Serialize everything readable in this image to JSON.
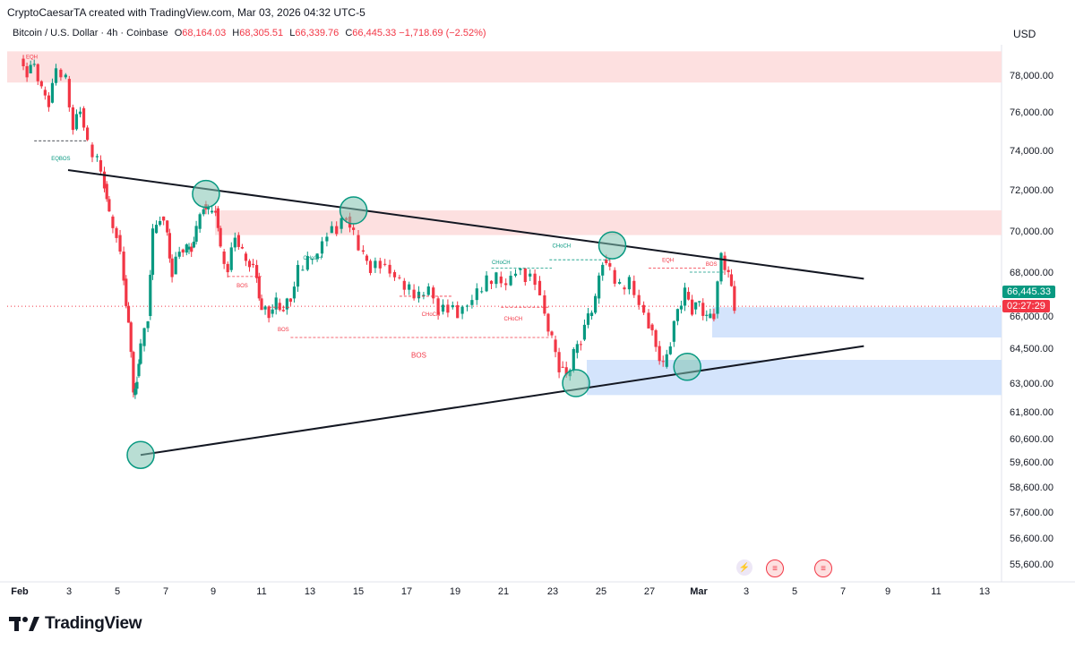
{
  "header": {
    "created_line": "CryptoCaesarTA created with TradingView.com, Mar 03, 2026 04:32 UTC-5",
    "symbol": "Bitcoin / U.S. Dollar · 4h · Coinbase",
    "o_label": "O",
    "o_value": "68,164.03",
    "h_label": "H",
    "h_value": "68,305.51",
    "l_label": "L",
    "l_value": "66,339.76",
    "c_label": "C",
    "c_value": "66,445.33",
    "change": "−1,718.69 (−2.52%)",
    "currency": "USD"
  },
  "price_tags": {
    "last_price": "66,445.33",
    "countdown": "02:27:29"
  },
  "footer": {
    "brand": "TradingView"
  },
  "colors": {
    "up": "#089981",
    "down": "#f23645",
    "supply": "#fde0e0",
    "demand": "#d4e4fc",
    "line": "#131722",
    "circle_fill": "#7fc2b0",
    "circle_stroke": "#089981"
  },
  "chart_data": {
    "type": "candlestick",
    "title": "Bitcoin / U.S. Dollar · 4h · Coinbase",
    "y_axis_ticks": [
      "78,000.00",
      "76,000.00",
      "74,000.00",
      "72,000.00",
      "70,000.00",
      "68,000.00",
      "66,000.00",
      "64,500.00",
      "63,000.00",
      "61,800.00",
      "60,600.00",
      "59,600.00",
      "58,600.00",
      "57,600.00",
      "56,600.00",
      "55,600.00"
    ],
    "x_axis_ticks": [
      "Feb",
      "3",
      "5",
      "7",
      "9",
      "11",
      "13",
      "15",
      "17",
      "19",
      "21",
      "23",
      "25",
      "27",
      "Mar",
      "3",
      "5",
      "7",
      "9",
      "11",
      "13"
    ],
    "close_price_path": [
      [
        1,
        78.9
      ],
      [
        1.3,
        78.1
      ],
      [
        1.6,
        78.6
      ],
      [
        1.9,
        77.2
      ],
      [
        2.2,
        76.5
      ],
      [
        2.5,
        78.3
      ],
      [
        2.9,
        77.8
      ],
      [
        3.2,
        75.1
      ],
      [
        3.5,
        76.2
      ],
      [
        3.8,
        74.3
      ],
      [
        4.2,
        73.5
      ],
      [
        4.5,
        72.3
      ],
      [
        4.7,
        70.7
      ],
      [
        5,
        69.8
      ],
      [
        5.3,
        67.7
      ],
      [
        5.5,
        65.7
      ],
      [
        5.7,
        62.5
      ],
      [
        5.85,
        63.3
      ],
      [
        6.0,
        64.6
      ],
      [
        6.3,
        66.0
      ],
      [
        6.5,
        69.9
      ],
      [
        6.8,
        70.7
      ],
      [
        7.1,
        69.9
      ],
      [
        7.3,
        67.9
      ],
      [
        7.6,
        69.1
      ],
      [
        7.9,
        69.1
      ],
      [
        8.1,
        69.2
      ],
      [
        8.3,
        70.1
      ],
      [
        8.6,
        71.3
      ],
      [
        8.8,
        70.9
      ],
      [
        9.1,
        71.1
      ],
      [
        9.3,
        69.0
      ],
      [
        9.6,
        68.1
      ],
      [
        9.9,
        69.8
      ],
      [
        10.2,
        68.9
      ],
      [
        10.5,
        68.4
      ],
      [
        10.8,
        67.8
      ],
      [
        11.0,
        66.3
      ],
      [
        11.3,
        66.1
      ],
      [
        11.6,
        66.6
      ],
      [
        11.9,
        66.3
      ],
      [
        12.2,
        66.8
      ],
      [
        12.5,
        68.1
      ],
      [
        12.9,
        68.6
      ],
      [
        13.3,
        68.9
      ],
      [
        13.7,
        69.9
      ],
      [
        14.1,
        70.1
      ],
      [
        14.5,
        70.7
      ],
      [
        14.8,
        69.8
      ],
      [
        15.2,
        68.8
      ],
      [
        15.5,
        68.2
      ],
      [
        15.9,
        68.4
      ],
      [
        16.3,
        68.0
      ],
      [
        16.7,
        67.6
      ],
      [
        17.1,
        67.2
      ],
      [
        17.5,
        66.9
      ],
      [
        17.9,
        67.3
      ],
      [
        18.3,
        66.2
      ],
      [
        18.7,
        66.4
      ],
      [
        19.1,
        66.1
      ],
      [
        19.5,
        66.5
      ],
      [
        19.9,
        67.1
      ],
      [
        20.3,
        67.6
      ],
      [
        20.7,
        67.8
      ],
      [
        21.1,
        67.4
      ],
      [
        21.5,
        68.1
      ],
      [
        21.9,
        67.8
      ],
      [
        22.3,
        67.6
      ],
      [
        22.7,
        66.1
      ],
      [
        23.0,
        64.9
      ],
      [
        23.3,
        63.7
      ],
      [
        23.6,
        63.3
      ],
      [
        23.9,
        64.3
      ],
      [
        24.2,
        64.9
      ],
      [
        24.5,
        66.0
      ],
      [
        24.8,
        66.8
      ],
      [
        25.1,
        68.6
      ],
      [
        25.4,
        68.1
      ],
      [
        25.8,
        67.3
      ],
      [
        26.2,
        67.6
      ],
      [
        26.6,
        66.5
      ],
      [
        27.0,
        65.6
      ],
      [
        27.3,
        64.6
      ],
      [
        27.6,
        63.7
      ],
      [
        27.9,
        64.8
      ],
      [
        28.2,
        66.3
      ],
      [
        28.5,
        67.1
      ],
      [
        28.8,
        66.3
      ],
      [
        29.1,
        66.6
      ],
      [
        29.4,
        65.9
      ],
      [
        29.7,
        66.1
      ],
      [
        30.0,
        68.8
      ],
      [
        30.3,
        67.9
      ],
      [
        30.55,
        66.4
      ]
    ],
    "zones": [
      {
        "type": "supply",
        "label": "",
        "price_top": 79.3,
        "price_bottom": 77.6
      },
      {
        "type": "supply",
        "label": "",
        "price_top": 71.0,
        "price_bottom": 69.8
      },
      {
        "type": "demand",
        "label": "",
        "price_top": 66.4,
        "price_bottom": 65.0
      },
      {
        "type": "demand",
        "label": "",
        "price_top": 64.0,
        "price_bottom": 62.5
      }
    ],
    "trendlines": [
      {
        "name": "upper-resistance",
        "from": [
          3,
          73.0
        ],
        "to": [
          35.9,
          67.7
        ]
      },
      {
        "name": "lower-support",
        "from": [
          6.0,
          59.9
        ],
        "to": [
          35.9,
          64.6
        ]
      }
    ],
    "touch_points": [
      [
        6.0,
        59.9
      ],
      [
        8.7,
        71.8
      ],
      [
        14.8,
        71.0
      ],
      [
        24.0,
        63.0
      ],
      [
        25.5,
        69.3
      ],
      [
        28.6,
        63.7
      ]
    ],
    "annotations": [
      {
        "text": "EQH",
        "x": 1.5,
        "y": 78.9
      },
      {
        "text": "EQBOS",
        "x": 2.7,
        "y": 73.5
      },
      {
        "text": "BOS",
        "x": 10.2,
        "y": 67.3
      },
      {
        "text": "CHoCH",
        "x": 13.1,
        "y": 68.6
      },
      {
        "text": "BOS",
        "x": 11.9,
        "y": 65.3
      },
      {
        "text": "BOS",
        "x": 17.5,
        "y": 64.1
      },
      {
        "text": "CHoCH",
        "x": 18.0,
        "y": 66.0
      },
      {
        "text": "CHoCH",
        "x": 20.9,
        "y": 68.4
      },
      {
        "text": "CHoCH",
        "x": 21.4,
        "y": 65.8
      },
      {
        "text": "CHoCH",
        "x": 23.4,
        "y": 69.2
      },
      {
        "text": "EQH",
        "x": 27.8,
        "y": 68.5
      },
      {
        "text": "BOS",
        "x": 29.6,
        "y": 68.3
      }
    ],
    "last_price": 66445.33,
    "ylabel": "USD"
  }
}
